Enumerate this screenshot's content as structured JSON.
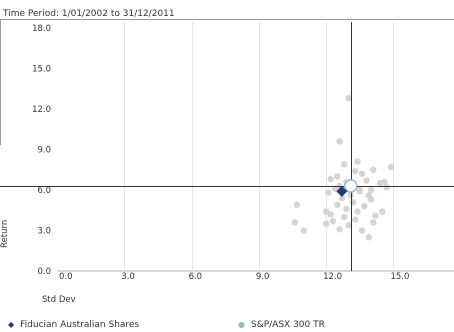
{
  "header": {
    "time_period": "Time Period: 1/01/2002 to 31/12/2011"
  },
  "chart_data": {
    "type": "scatter",
    "title": "",
    "xlabel": "Std Dev",
    "ylabel": "Return",
    "xlim": [
      0,
      17.7
    ],
    "ylim": [
      0,
      18.0
    ],
    "x_ticks": [
      "0.0",
      "3.0",
      "6.0",
      "9.0",
      "12.0",
      "15.0"
    ],
    "y_ticks": [
      "0.0",
      "3.0",
      "6.0",
      "9.0",
      "12.0",
      "15.0",
      "18.0"
    ],
    "grid": "vertical",
    "crosshair": {
      "x": 13.1,
      "y": 6.3
    },
    "series": [
      {
        "name": "Fiducian Australian Shares",
        "marker": "diamond",
        "color": "#1f3a7a",
        "points": [
          [
            12.7,
            5.9
          ]
        ]
      },
      {
        "name": "S&P/ASX 300 TR",
        "marker": "circle-open",
        "color": "#9ab8c8",
        "points": [
          [
            13.1,
            6.3
          ]
        ]
      },
      {
        "name": "",
        "marker": "dot",
        "color": "#d9d2d2",
        "points": [
          [
            13.0,
            12.8
          ],
          [
            12.6,
            9.6
          ],
          [
            13.4,
            8.1
          ],
          [
            12.8,
            7.9
          ],
          [
            14.1,
            7.5
          ],
          [
            14.9,
            7.7
          ],
          [
            13.6,
            7.2
          ],
          [
            12.5,
            7.0
          ],
          [
            13.3,
            7.4
          ],
          [
            12.2,
            6.8
          ],
          [
            13.8,
            6.7
          ],
          [
            14.4,
            6.5
          ],
          [
            12.9,
            6.6
          ],
          [
            13.5,
            6.0
          ],
          [
            12.4,
            6.1
          ],
          [
            14.7,
            6.2
          ],
          [
            13.9,
            5.6
          ],
          [
            12.1,
            5.8
          ],
          [
            12.7,
            5.4
          ],
          [
            13.2,
            5.1
          ],
          [
            14.0,
            5.3
          ],
          [
            12.5,
            4.9
          ],
          [
            13.7,
            4.8
          ],
          [
            12.0,
            4.4
          ],
          [
            13.4,
            4.4
          ],
          [
            14.2,
            4.1
          ],
          [
            12.8,
            4.0
          ],
          [
            12.3,
            3.7
          ],
          [
            13.0,
            3.4
          ],
          [
            14.1,
            3.6
          ],
          [
            12.6,
            3.1
          ],
          [
            13.6,
            3.0
          ],
          [
            10.7,
            4.9
          ],
          [
            10.6,
            3.6
          ],
          [
            11.0,
            3.0
          ],
          [
            12.0,
            3.5
          ],
          [
            13.9,
            2.5
          ],
          [
            14.5,
            4.4
          ],
          [
            13.1,
            5.6
          ],
          [
            12.9,
            4.6
          ],
          [
            13.5,
            5.9
          ],
          [
            12.6,
            6.3
          ],
          [
            14.0,
            6.0
          ],
          [
            13.3,
            3.8
          ],
          [
            12.2,
            4.2
          ],
          [
            14.6,
            6.6
          ]
        ]
      }
    ],
    "legend_position": "bottom"
  }
}
